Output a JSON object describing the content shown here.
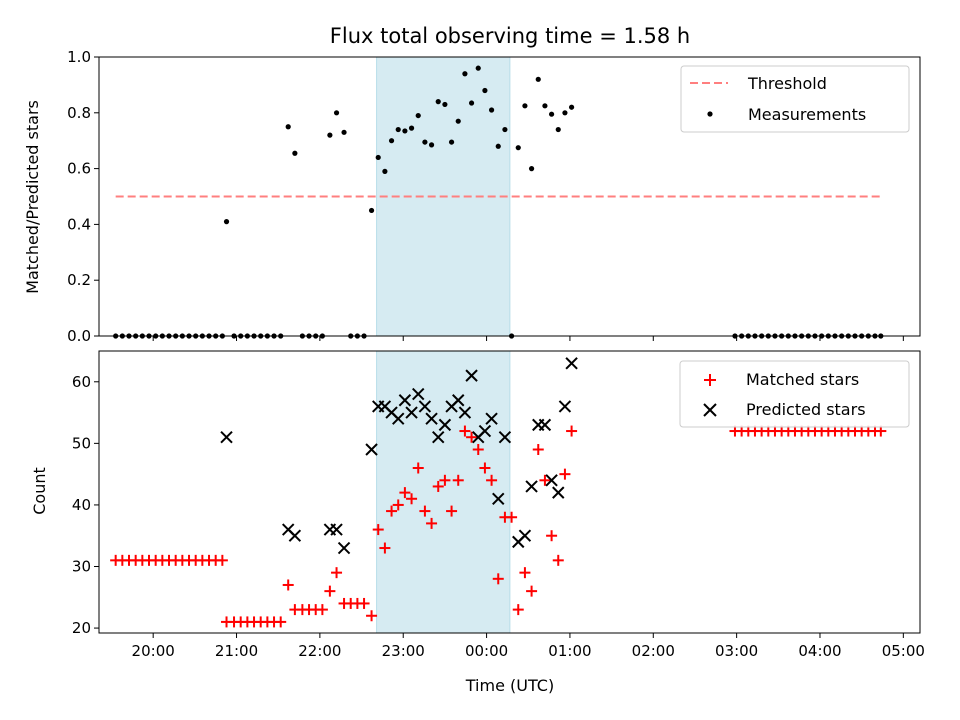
{
  "chart_data": {
    "type": "scatter",
    "title": "Flux total observing time = 1.58 h",
    "xlabel": "Time (UTC)",
    "xlim": [
      19.35,
      29.2
    ],
    "x_ticks": [
      20,
      21,
      22,
      23,
      24,
      25,
      26,
      27,
      28,
      29
    ],
    "x_tick_labels": [
      "20:00",
      "21:00",
      "22:00",
      "23:00",
      "00:00",
      "01:00",
      "02:00",
      "03:00",
      "04:00",
      "05:00"
    ],
    "highlight_span": [
      22.68,
      24.28
    ],
    "top": {
      "ylabel": "Matched/Predicted stars",
      "ylim": [
        0,
        1.0
      ],
      "y_ticks": [
        0.0,
        0.2,
        0.4,
        0.6,
        0.8,
        1.0
      ],
      "y_tick_labels": [
        "0.0",
        "0.2",
        "0.4",
        "0.6",
        "0.8",
        "1.0"
      ],
      "threshold": {
        "name": "Threshold",
        "y": 0.5,
        "x": [
          19.55,
          28.73
        ],
        "color": "#ff7f7f"
      },
      "measurements": {
        "name": "Measurements",
        "color": "#000000",
        "points": [
          [
            19.55,
            0
          ],
          [
            19.63,
            0
          ],
          [
            19.71,
            0
          ],
          [
            19.79,
            0
          ],
          [
            19.87,
            0
          ],
          [
            19.95,
            0
          ],
          [
            20.03,
            0
          ],
          [
            20.11,
            0
          ],
          [
            20.19,
            0
          ],
          [
            20.27,
            0
          ],
          [
            20.35,
            0
          ],
          [
            20.43,
            0
          ],
          [
            20.51,
            0
          ],
          [
            20.59,
            0
          ],
          [
            20.67,
            0
          ],
          [
            20.75,
            0
          ],
          [
            20.83,
            0
          ],
          [
            20.88,
            0.41
          ],
          [
            20.97,
            0
          ],
          [
            21.05,
            0
          ],
          [
            21.13,
            0
          ],
          [
            21.21,
            0
          ],
          [
            21.29,
            0
          ],
          [
            21.37,
            0
          ],
          [
            21.45,
            0
          ],
          [
            21.53,
            0
          ],
          [
            21.62,
            0.75
          ],
          [
            21.7,
            0.655
          ],
          [
            21.79,
            0
          ],
          [
            21.87,
            0
          ],
          [
            21.95,
            0
          ],
          [
            22.03,
            0
          ],
          [
            22.12,
            0.72
          ],
          [
            22.2,
            0.8
          ],
          [
            22.29,
            0.73
          ],
          [
            22.37,
            0
          ],
          [
            22.45,
            0
          ],
          [
            22.53,
            0
          ],
          [
            22.62,
            0.45
          ],
          [
            22.7,
            0.64
          ],
          [
            22.78,
            0.59
          ],
          [
            22.86,
            0.7
          ],
          [
            22.94,
            0.74
          ],
          [
            23.02,
            0.735
          ],
          [
            23.1,
            0.745
          ],
          [
            23.18,
            0.79
          ],
          [
            23.26,
            0.695
          ],
          [
            23.34,
            0.685
          ],
          [
            23.42,
            0.84
          ],
          [
            23.5,
            0.83
          ],
          [
            23.58,
            0.695
          ],
          [
            23.66,
            0.77
          ],
          [
            23.74,
            0.94
          ],
          [
            23.82,
            0.835
          ],
          [
            23.9,
            0.96
          ],
          [
            23.98,
            0.88
          ],
          [
            24.06,
            0.81
          ],
          [
            24.14,
            0.68
          ],
          [
            24.22,
            0.74
          ],
          [
            24.3,
            0
          ],
          [
            24.38,
            0.675
          ],
          [
            24.46,
            0.825
          ],
          [
            24.54,
            0.6
          ],
          [
            24.62,
            0.92
          ],
          [
            24.7,
            0.825
          ],
          [
            24.78,
            0.795
          ],
          [
            24.86,
            0.74
          ],
          [
            24.94,
            0.8
          ],
          [
            25.02,
            0.82
          ],
          [
            26.98,
            0
          ],
          [
            27.06,
            0
          ],
          [
            27.14,
            0
          ],
          [
            27.22,
            0
          ],
          [
            27.3,
            0
          ],
          [
            27.38,
            0
          ],
          [
            27.46,
            0
          ],
          [
            27.54,
            0
          ],
          [
            27.62,
            0
          ],
          [
            27.7,
            0
          ],
          [
            27.78,
            0
          ],
          [
            27.86,
            0
          ],
          [
            27.94,
            0
          ],
          [
            28.02,
            0
          ],
          [
            28.1,
            0
          ],
          [
            28.18,
            0
          ],
          [
            28.26,
            0
          ],
          [
            28.34,
            0
          ],
          [
            28.42,
            0
          ],
          [
            28.5,
            0
          ],
          [
            28.58,
            0
          ],
          [
            28.66,
            0
          ],
          [
            28.73,
            0
          ]
        ]
      }
    },
    "bottom": {
      "ylabel": "Count",
      "ylim": [
        19.2,
        65.0
      ],
      "y_ticks": [
        20,
        30,
        40,
        50,
        60
      ],
      "y_tick_labels": [
        "20",
        "30",
        "40",
        "50",
        "60"
      ],
      "matched": {
        "name": "Matched stars",
        "color": "#ff0000",
        "points": [
          [
            19.55,
            31
          ],
          [
            19.63,
            31
          ],
          [
            19.71,
            31
          ],
          [
            19.79,
            31
          ],
          [
            19.87,
            31
          ],
          [
            19.95,
            31
          ],
          [
            20.03,
            31
          ],
          [
            20.11,
            31
          ],
          [
            20.19,
            31
          ],
          [
            20.27,
            31
          ],
          [
            20.35,
            31
          ],
          [
            20.43,
            31
          ],
          [
            20.51,
            31
          ],
          [
            20.59,
            31
          ],
          [
            20.67,
            31
          ],
          [
            20.75,
            31
          ],
          [
            20.83,
            31
          ],
          [
            20.88,
            21
          ],
          [
            20.97,
            21
          ],
          [
            21.05,
            21
          ],
          [
            21.13,
            21
          ],
          [
            21.21,
            21
          ],
          [
            21.29,
            21
          ],
          [
            21.37,
            21
          ],
          [
            21.45,
            21
          ],
          [
            21.53,
            21
          ],
          [
            21.62,
            27
          ],
          [
            21.7,
            23
          ],
          [
            21.79,
            23
          ],
          [
            21.87,
            23
          ],
          [
            21.95,
            23
          ],
          [
            22.03,
            23
          ],
          [
            22.12,
            26
          ],
          [
            22.2,
            29
          ],
          [
            22.29,
            24
          ],
          [
            22.37,
            24
          ],
          [
            22.45,
            24
          ],
          [
            22.53,
            24
          ],
          [
            22.62,
            22
          ],
          [
            22.7,
            36
          ],
          [
            22.78,
            33
          ],
          [
            22.86,
            39
          ],
          [
            22.94,
            40
          ],
          [
            23.02,
            42
          ],
          [
            23.1,
            41
          ],
          [
            23.18,
            46
          ],
          [
            23.26,
            39
          ],
          [
            23.34,
            37
          ],
          [
            23.42,
            43
          ],
          [
            23.5,
            44
          ],
          [
            23.58,
            39
          ],
          [
            23.66,
            44
          ],
          [
            23.74,
            52
          ],
          [
            23.82,
            51
          ],
          [
            23.9,
            49
          ],
          [
            23.98,
            46
          ],
          [
            24.06,
            44
          ],
          [
            24.14,
            28
          ],
          [
            24.22,
            38
          ],
          [
            24.3,
            38
          ],
          [
            24.38,
            23
          ],
          [
            24.46,
            29
          ],
          [
            24.54,
            26
          ],
          [
            24.62,
            49
          ],
          [
            24.7,
            44
          ],
          [
            24.78,
            35
          ],
          [
            24.86,
            31
          ],
          [
            24.94,
            45
          ],
          [
            25.02,
            52
          ],
          [
            26.98,
            52
          ],
          [
            27.06,
            52
          ],
          [
            27.14,
            52
          ],
          [
            27.22,
            52
          ],
          [
            27.3,
            52
          ],
          [
            27.38,
            52
          ],
          [
            27.46,
            52
          ],
          [
            27.54,
            52
          ],
          [
            27.62,
            52
          ],
          [
            27.7,
            52
          ],
          [
            27.78,
            52
          ],
          [
            27.86,
            52
          ],
          [
            27.94,
            52
          ],
          [
            28.02,
            52
          ],
          [
            28.1,
            52
          ],
          [
            28.18,
            52
          ],
          [
            28.26,
            52
          ],
          [
            28.34,
            52
          ],
          [
            28.42,
            52
          ],
          [
            28.5,
            52
          ],
          [
            28.58,
            52
          ],
          [
            28.66,
            52
          ],
          [
            28.73,
            52
          ]
        ]
      },
      "predicted": {
        "name": "Predicted stars",
        "color": "#000000",
        "points": [
          [
            20.88,
            51
          ],
          [
            21.62,
            36
          ],
          [
            21.7,
            35
          ],
          [
            22.12,
            36
          ],
          [
            22.2,
            36
          ],
          [
            22.29,
            33
          ],
          [
            22.62,
            49
          ],
          [
            22.7,
            56
          ],
          [
            22.78,
            56
          ],
          [
            22.86,
            55
          ],
          [
            22.94,
            54
          ],
          [
            23.02,
            57
          ],
          [
            23.1,
            55
          ],
          [
            23.18,
            58
          ],
          [
            23.26,
            56
          ],
          [
            23.34,
            54
          ],
          [
            23.42,
            51
          ],
          [
            23.5,
            53
          ],
          [
            23.58,
            56
          ],
          [
            23.66,
            57
          ],
          [
            23.74,
            55
          ],
          [
            23.82,
            61
          ],
          [
            23.9,
            51
          ],
          [
            23.98,
            52
          ],
          [
            24.06,
            54
          ],
          [
            24.14,
            41
          ],
          [
            24.22,
            51
          ],
          [
            24.38,
            34
          ],
          [
            24.46,
            35
          ],
          [
            24.54,
            43
          ],
          [
            24.62,
            53
          ],
          [
            24.7,
            53
          ],
          [
            24.78,
            44
          ],
          [
            24.86,
            42
          ],
          [
            24.94,
            56
          ],
          [
            25.02,
            63
          ]
        ]
      }
    }
  }
}
